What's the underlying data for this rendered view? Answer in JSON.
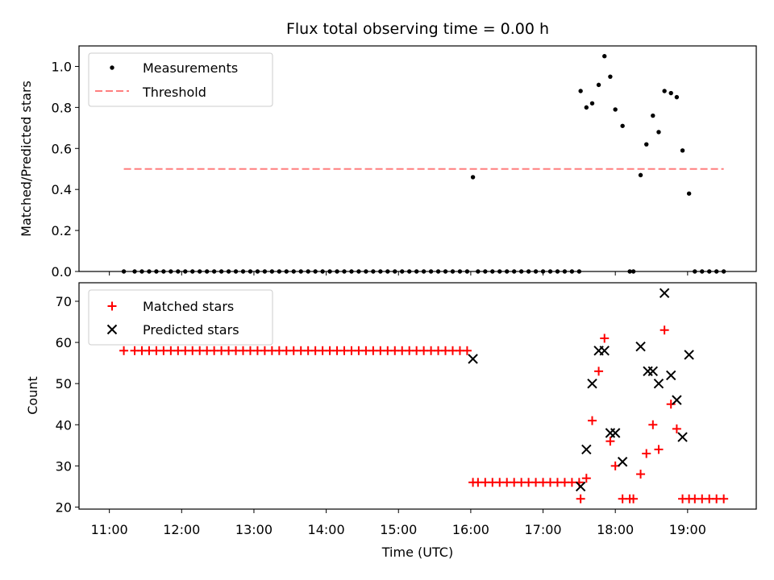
{
  "chart_data": [
    {
      "type": "scatter",
      "title": "Flux total observing time = 0.00 h",
      "xlabel": "",
      "ylabel": "Matched/Predicted stars",
      "ylim": [
        0,
        1.1
      ],
      "yticks": [
        "0.0",
        "0.2",
        "0.4",
        "0.6",
        "0.8",
        "1.0"
      ],
      "ytick_values": [
        0,
        0.2,
        0.4,
        0.6,
        0.8,
        1.0
      ],
      "legend": {
        "position": "top-left",
        "entries": [
          "Measurements",
          "Threshold"
        ]
      },
      "threshold": {
        "name": "Threshold",
        "value": 0.5,
        "x_start": 11.2,
        "x_end": 19.5,
        "color": "#ff7f7f"
      },
      "series": [
        {
          "name": "Measurements",
          "marker": "dot",
          "color": "#000000",
          "x": [
            11.2,
            11.35,
            11.45,
            11.55,
            11.65,
            11.75,
            11.85,
            11.95,
            12.05,
            12.15,
            12.25,
            12.35,
            12.45,
            12.55,
            12.65,
            12.75,
            12.85,
            12.95,
            13.05,
            13.15,
            13.25,
            13.35,
            13.45,
            13.55,
            13.65,
            13.75,
            13.85,
            13.95,
            14.05,
            14.15,
            14.25,
            14.35,
            14.45,
            14.55,
            14.65,
            14.75,
            14.85,
            14.95,
            15.05,
            15.15,
            15.25,
            15.35,
            15.45,
            15.55,
            15.65,
            15.75,
            15.85,
            15.95,
            16.03,
            16.1,
            16.2,
            16.3,
            16.4,
            16.5,
            16.6,
            16.7,
            16.8,
            16.9,
            17.0,
            17.1,
            17.2,
            17.3,
            17.4,
            17.5,
            17.52,
            17.6,
            17.68,
            17.77,
            17.85,
            17.93,
            18.0,
            18.1,
            18.2,
            18.25,
            18.35,
            18.43,
            18.52,
            18.6,
            18.68,
            18.77,
            18.85,
            18.93,
            19.02,
            19.1,
            19.2,
            19.3,
            19.4,
            19.5
          ],
          "y": [
            0,
            0,
            0,
            0,
            0,
            0,
            0,
            0,
            0,
            0,
            0,
            0,
            0,
            0,
            0,
            0,
            0,
            0,
            0,
            0,
            0,
            0,
            0,
            0,
            0,
            0,
            0,
            0,
            0,
            0,
            0,
            0,
            0,
            0,
            0,
            0,
            0,
            0,
            0,
            0,
            0,
            0,
            0,
            0,
            0,
            0,
            0,
            0,
            0.46,
            0,
            0,
            0,
            0,
            0,
            0,
            0,
            0,
            0,
            0,
            0,
            0,
            0,
            0,
            0,
            0.88,
            0.8,
            0.82,
            0.91,
            1.05,
            0.95,
            0.79,
            0.71,
            0,
            0,
            0.47,
            0.62,
            0.76,
            0.68,
            0.88,
            0.87,
            0.85,
            0.59,
            0.38,
            0,
            0,
            0,
            0,
            0
          ]
        }
      ]
    },
    {
      "type": "scatter",
      "title": "",
      "xlabel": "Time (UTC)",
      "ylabel": "Count",
      "ylim": [
        19.5,
        74.5
      ],
      "xlim": [
        10.58,
        19.95
      ],
      "xticks": [
        "11:00",
        "12:00",
        "13:00",
        "14:00",
        "15:00",
        "16:00",
        "17:00",
        "18:00",
        "19:00"
      ],
      "xtick_values": [
        11,
        12,
        13,
        14,
        15,
        16,
        17,
        18,
        19
      ],
      "yticks": [
        "20",
        "30",
        "40",
        "50",
        "60",
        "70"
      ],
      "ytick_values": [
        20,
        30,
        40,
        50,
        60,
        70
      ],
      "legend": {
        "position": "top-left",
        "entries": [
          "Matched stars",
          "Predicted stars"
        ]
      },
      "series": [
        {
          "name": "Matched stars",
          "marker": "plus",
          "color": "#ff0000",
          "x": [
            11.2,
            11.35,
            11.45,
            11.55,
            11.65,
            11.75,
            11.85,
            11.95,
            12.05,
            12.15,
            12.25,
            12.35,
            12.45,
            12.55,
            12.65,
            12.75,
            12.85,
            12.95,
            13.05,
            13.15,
            13.25,
            13.35,
            13.45,
            13.55,
            13.65,
            13.75,
            13.85,
            13.95,
            14.05,
            14.15,
            14.25,
            14.35,
            14.45,
            14.55,
            14.65,
            14.75,
            14.85,
            14.95,
            15.05,
            15.15,
            15.25,
            15.35,
            15.45,
            15.55,
            15.65,
            15.75,
            15.85,
            15.95,
            16.03,
            16.1,
            16.2,
            16.3,
            16.4,
            16.5,
            16.6,
            16.7,
            16.8,
            16.9,
            17.0,
            17.1,
            17.2,
            17.3,
            17.4,
            17.5,
            17.52,
            17.6,
            17.68,
            17.77,
            17.85,
            17.93,
            18.0,
            18.1,
            18.2,
            18.25,
            18.35,
            18.43,
            18.52,
            18.6,
            18.68,
            18.77,
            18.85,
            18.93,
            19.02,
            19.1,
            19.2,
            19.3,
            19.4,
            19.5
          ],
          "y": [
            58,
            58,
            58,
            58,
            58,
            58,
            58,
            58,
            58,
            58,
            58,
            58,
            58,
            58,
            58,
            58,
            58,
            58,
            58,
            58,
            58,
            58,
            58,
            58,
            58,
            58,
            58,
            58,
            58,
            58,
            58,
            58,
            58,
            58,
            58,
            58,
            58,
            58,
            58,
            58,
            58,
            58,
            58,
            58,
            58,
            58,
            58,
            58,
            26,
            26,
            26,
            26,
            26,
            26,
            26,
            26,
            26,
            26,
            26,
            26,
            26,
            26,
            26,
            26,
            22,
            27,
            41,
            53,
            61,
            36,
            30,
            22,
            22,
            22,
            28,
            33,
            40,
            34,
            63,
            45,
            39,
            22,
            22,
            22,
            22,
            22,
            22,
            22
          ]
        },
        {
          "name": "Predicted stars",
          "marker": "x",
          "color": "#000000",
          "x": [
            16.03,
            17.52,
            17.6,
            17.68,
            17.77,
            17.85,
            17.93,
            18.0,
            18.1,
            18.35,
            18.45,
            18.52,
            18.6,
            18.68,
            18.77,
            18.85,
            18.93,
            19.02
          ],
          "y": [
            56,
            25,
            34,
            50,
            58,
            58,
            38,
            38,
            31,
            59,
            53,
            53,
            50,
            72,
            52,
            46,
            37,
            57
          ]
        }
      ]
    }
  ]
}
